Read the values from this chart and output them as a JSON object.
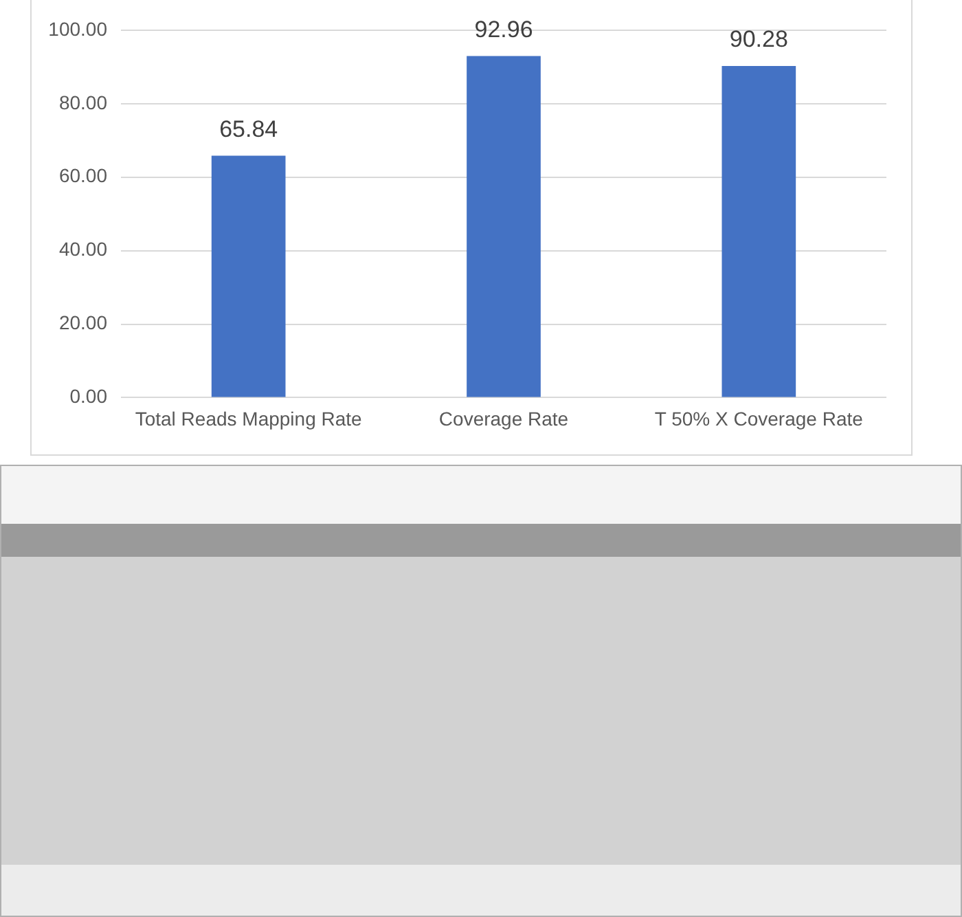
{
  "chart_data": {
    "type": "bar",
    "categories": [
      "Total Reads Mapping Rate",
      "Coverage Rate",
      "T 50% X Coverage Rate"
    ],
    "values": [
      65.84,
      92.96,
      90.28
    ],
    "color": "#4472c4",
    "ylim": [
      0,
      100
    ],
    "yticks": [
      {
        "value": 0,
        "label": "0.00"
      },
      {
        "value": 20,
        "label": "20.00"
      },
      {
        "value": 40,
        "label": "40.00"
      },
      {
        "value": 60,
        "label": "60.00"
      },
      {
        "value": 80,
        "label": "80.00"
      },
      {
        "value": 100,
        "label": "100.00"
      }
    ],
    "grid": "y",
    "data_labels": true
  }
}
